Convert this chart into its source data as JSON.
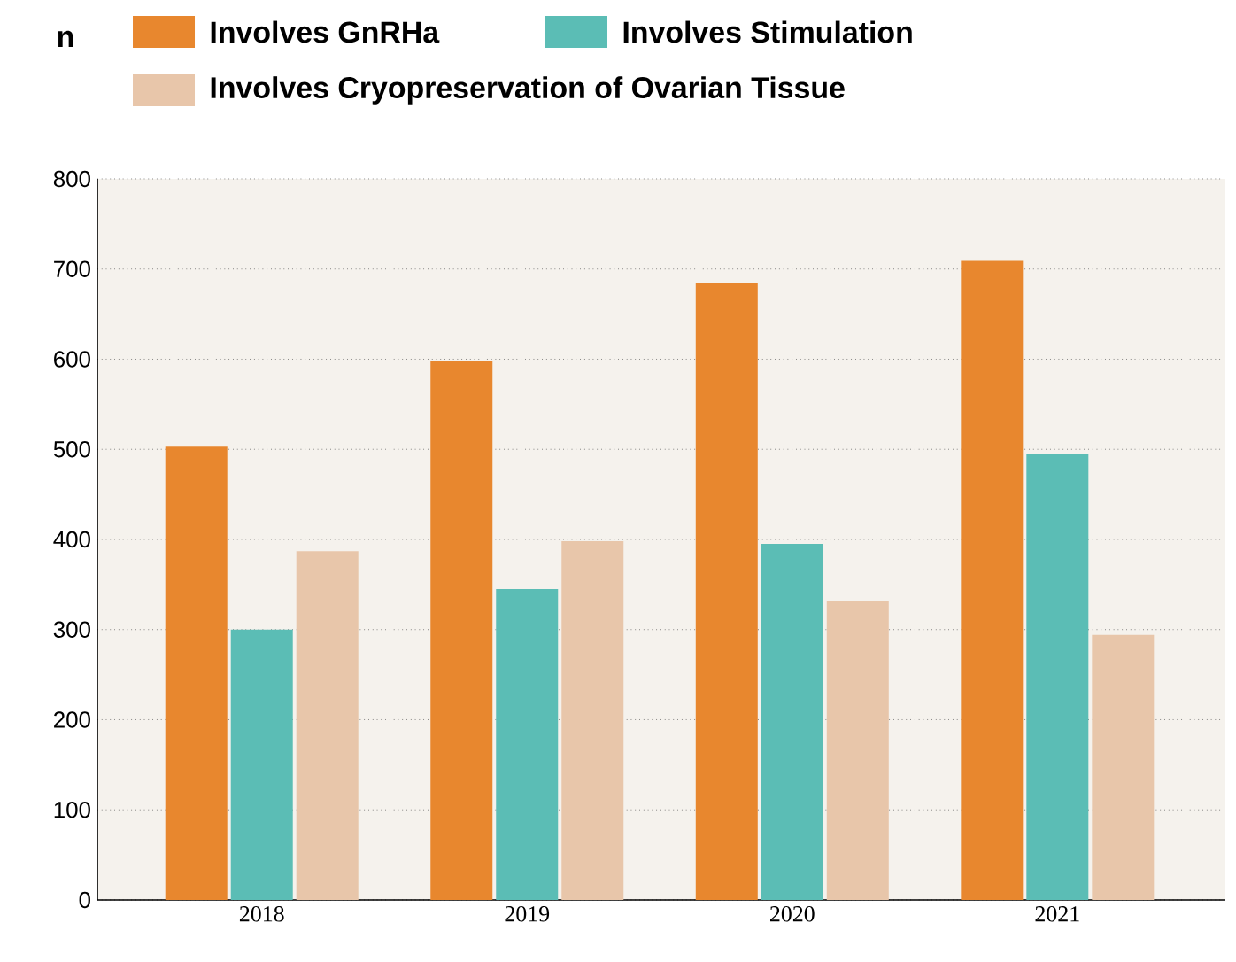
{
  "chart_data": {
    "type": "bar",
    "ylabel": "n",
    "categories": [
      "2018",
      "2019",
      "2020",
      "2021"
    ],
    "series": [
      {
        "name": "Involves GnRHa",
        "color": "#e8872e",
        "values": [
          503,
          598,
          685,
          709
        ]
      },
      {
        "name": "Involves Stimulation",
        "color": "#5bbdb5",
        "values": [
          300,
          345,
          395,
          495
        ]
      },
      {
        "name": "Involves Cryopreservation of Ovarian Tissue",
        "color": "#e8c6aa",
        "values": [
          387,
          398,
          332,
          294
        ]
      }
    ],
    "ylim": [
      0,
      800
    ],
    "yticks": [
      0,
      100,
      200,
      300,
      400,
      500,
      600,
      700,
      800
    ],
    "grid": "y",
    "legend": "top"
  }
}
